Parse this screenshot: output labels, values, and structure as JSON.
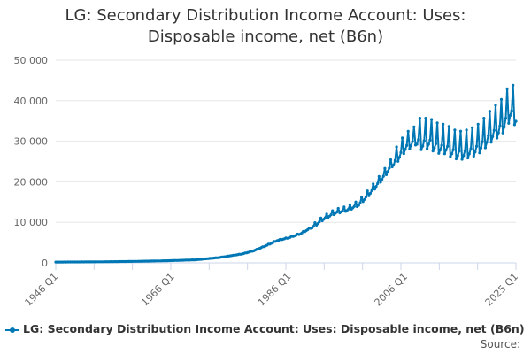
{
  "title_lines": [
    "LG: Secondary Distribution Income Account: Uses:",
    "Disposable income, net (B6n)"
  ],
  "source_label": "Source:",
  "colors": {
    "series": "#0077b5",
    "grid": "#e6e6e6",
    "axis": "#ccd6eb"
  },
  "chart_data": {
    "type": "line",
    "title": "LG: Secondary Distribution Income Account: Uses: Disposable income, net (B6n)",
    "xlabel": "",
    "ylabel": "",
    "grid": true,
    "legend_position": "bottom",
    "x_start_year": 1946,
    "x_end_year": 2025,
    "frequency": "quarterly",
    "ylim": [
      0,
      50000
    ],
    "y_ticks": [
      0,
      10000,
      20000,
      30000,
      40000,
      50000
    ],
    "y_tick_labels": [
      "0",
      "10 000",
      "20 000",
      "30 000",
      "40 000",
      "50 000"
    ],
    "x_tick_labels": [
      "1946 Q1",
      "1966 Q1",
      "1986 Q1",
      "2006 Q1",
      "2025 Q1"
    ],
    "series": [
      {
        "name": "LG: Secondary Distribution Income Account: Uses: Disposable income, net (B6n)",
        "annual_anchors": {
          "years": [
            1946,
            1950,
            1955,
            1960,
            1965,
            1970,
            1974,
            1978,
            1980,
            1982,
            1984,
            1986,
            1988,
            1990,
            1992,
            1994,
            1996,
            1998,
            2000,
            2002,
            2004,
            2006,
            2007,
            2008,
            2009,
            2010,
            2011,
            2012,
            2013,
            2014,
            2015,
            2016,
            2017,
            2018,
            2019,
            2020,
            2021,
            2022,
            2023,
            2024,
            2025
          ],
          "values": [
            200,
            220,
            280,
            380,
            520,
            750,
            1300,
            2200,
            3000,
            4200,
            5500,
            6200,
            7200,
            8800,
            11000,
            12500,
            13200,
            14500,
            17500,
            21000,
            25000,
            29000,
            30000,
            31000,
            30500,
            31000,
            30000,
            29500,
            29500,
            28500,
            28000,
            28000,
            28500,
            29000,
            30000,
            31500,
            33000,
            34000,
            35500,
            38500,
            37000
          ]
        },
        "seasonal_amplitude": [
          {
            "from_year": 1946,
            "amp": 0.02
          },
          {
            "from_year": 1990,
            "amp": 0.06
          },
          {
            "from_year": 2004,
            "amp": 0.1
          },
          {
            "from_year": 2008,
            "amp": 0.16
          }
        ]
      }
    ]
  }
}
